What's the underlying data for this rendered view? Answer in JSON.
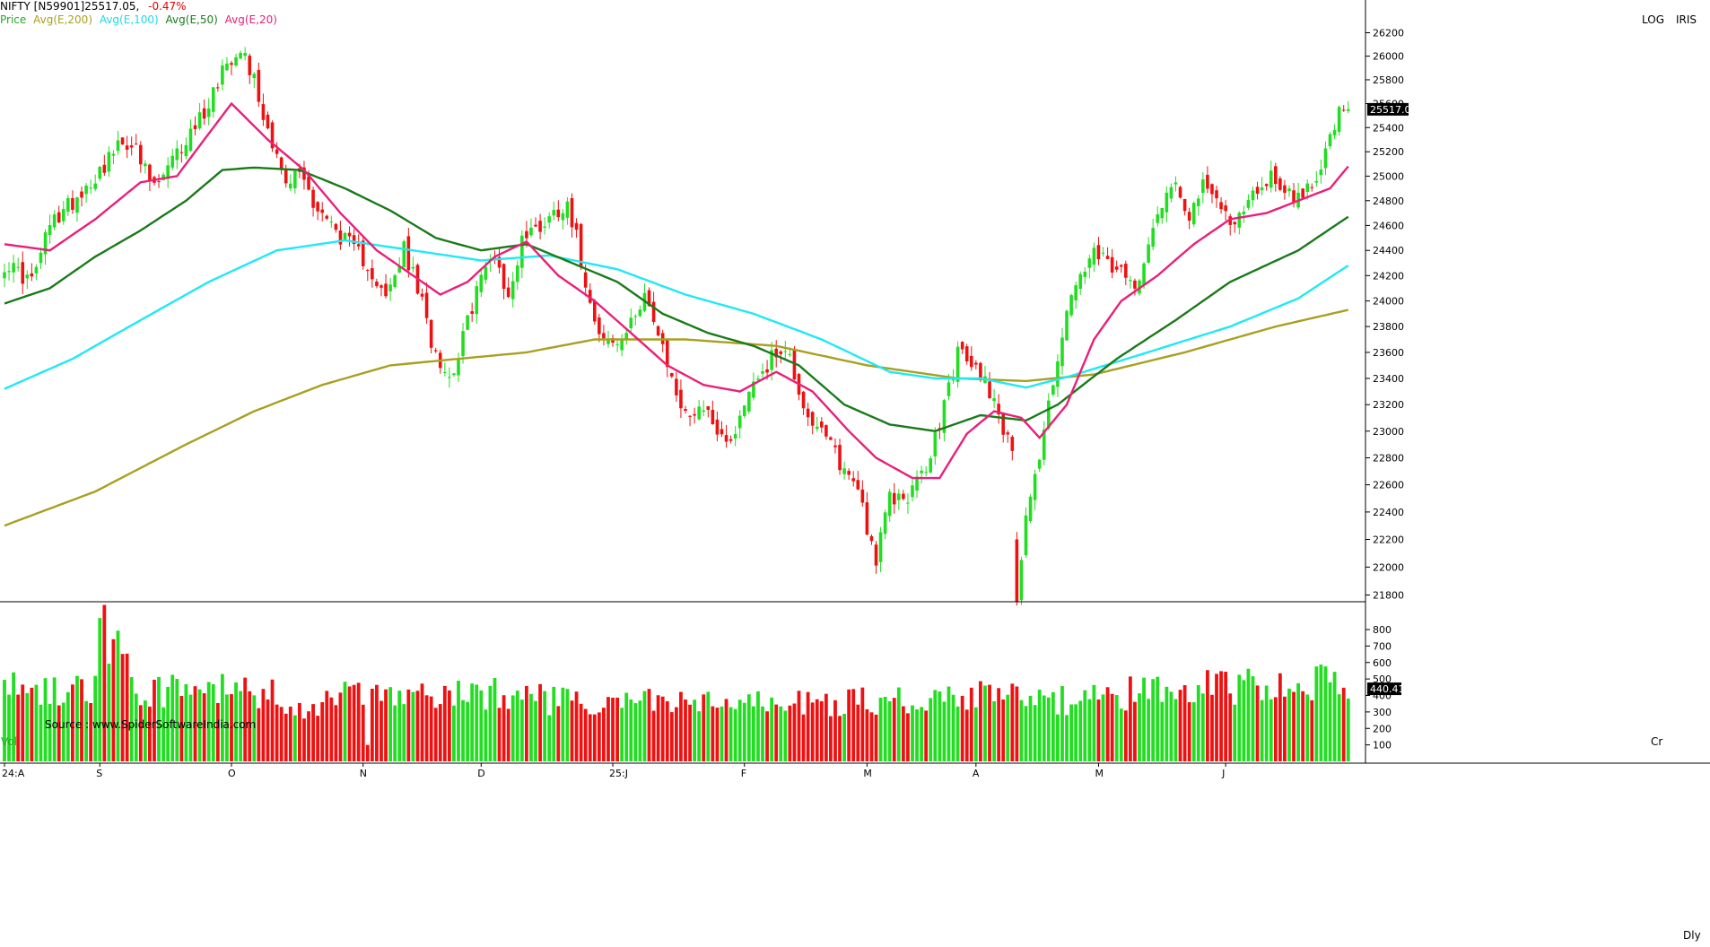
{
  "header": {
    "symbol": "NIFTY [N59901]",
    "price": "25517.05,",
    "change": "-0.47%",
    "corner_log": "LOG",
    "corner_iris": "IRIS"
  },
  "legend": [
    {
      "label": "Price",
      "color": "#22aa22"
    },
    {
      "label": "Avg(E,200)",
      "color": "#a8a020"
    },
    {
      "label": "Avg(E,100)",
      "color": "#20e0f0"
    },
    {
      "label": "Avg(E,50)",
      "color": "#1a7a1a"
    },
    {
      "label": "Avg(E,20)",
      "color": "#e8207a"
    }
  ],
  "source": "Source : www.SpiderSoftwareIndia.com",
  "volume_panel": {
    "label": "Vol",
    "corner": "Cr",
    "last_value": "440.41",
    "y_ticks": [
      "100",
      "200",
      "300",
      "400",
      "500",
      "600",
      "700",
      "800"
    ]
  },
  "price_panel": {
    "last_value": "25517.0",
    "y_ticks": [
      "21800",
      "22000",
      "22200",
      "22400",
      "22600",
      "22800",
      "23000",
      "23200",
      "23400",
      "23600",
      "23800",
      "24000",
      "24200",
      "24400",
      "24600",
      "24800",
      "25000",
      "25200",
      "25400",
      "25600",
      "25800",
      "26000",
      "26200"
    ]
  },
  "x_axis": {
    "labels": [
      "24:A",
      "S",
      "O",
      "N",
      "D",
      "25:J",
      "F",
      "M",
      "A",
      "M",
      "J"
    ],
    "period": "Dly"
  },
  "chart_data": {
    "type": "candlestick",
    "title": "NIFTY [N59901]",
    "scale": "log",
    "ylim": [
      21750,
      26300
    ],
    "series": [
      {
        "name": "Avg(E,200)",
        "color": "#a8a020",
        "kind": "line"
      },
      {
        "name": "Avg(E,100)",
        "color": "#20e0f0",
        "kind": "line"
      },
      {
        "name": "Avg(E,50)",
        "color": "#1a7a1a",
        "kind": "line"
      },
      {
        "name": "Avg(E,20)",
        "color": "#e8207a",
        "kind": "line"
      }
    ],
    "anchors": {
      "close": [
        [
          0,
          24300
        ],
        [
          6,
          24150
        ],
        [
          10,
          24600
        ],
        [
          15,
          24800
        ],
        [
          20,
          25000
        ],
        [
          24,
          25200
        ],
        [
          28,
          25300
        ],
        [
          30,
          25100
        ],
        [
          33,
          24900
        ],
        [
          36,
          25050
        ],
        [
          40,
          25300
        ],
        [
          45,
          25600
        ],
        [
          48,
          25900
        ],
        [
          52,
          26100
        ],
        [
          55,
          25800
        ],
        [
          57,
          25500
        ],
        [
          60,
          25200
        ],
        [
          62,
          24900
        ],
        [
          65,
          25050
        ],
        [
          68,
          24800
        ],
        [
          72,
          24600
        ],
        [
          77,
          24400
        ],
        [
          80,
          24300
        ],
        [
          84,
          24000
        ],
        [
          88,
          24400
        ],
        [
          91,
          24100
        ],
        [
          94,
          23700
        ],
        [
          98,
          23400
        ],
        [
          101,
          23700
        ],
        [
          104,
          24100
        ],
        [
          108,
          24400
        ],
        [
          111,
          24000
        ],
        [
          114,
          24500
        ],
        [
          118,
          24600
        ],
        [
          121,
          24700
        ],
        [
          124,
          24800
        ],
        [
          126,
          24500
        ],
        [
          129,
          24000
        ],
        [
          132,
          23700
        ],
        [
          135,
          23650
        ],
        [
          138,
          23800
        ],
        [
          141,
          24100
        ],
        [
          144,
          23700
        ],
        [
          147,
          23400
        ],
        [
          150,
          23100
        ],
        [
          153,
          23200
        ],
        [
          156,
          23100
        ],
        [
          159,
          22900
        ],
        [
          162,
          23100
        ],
        [
          165,
          23400
        ],
        [
          168,
          23500
        ],
        [
          171,
          23650
        ],
        [
          173,
          23550
        ],
        [
          176,
          23200
        ],
        [
          179,
          23000
        ],
        [
          182,
          22900
        ],
        [
          185,
          22700
        ],
        [
          188,
          22600
        ],
        [
          190,
          22300
        ],
        [
          192,
          22050
        ],
        [
          195,
          22500
        ],
        [
          198,
          22500
        ],
        [
          201,
          22600
        ],
        [
          204,
          22800
        ],
        [
          207,
          23200
        ],
        [
          210,
          23600
        ],
        [
          213,
          23500
        ],
        [
          216,
          23400
        ],
        [
          219,
          23150
        ],
        [
          222,
          22800
        ],
        [
          223,
          21800
        ],
        [
          225,
          22400
        ],
        [
          228,
          22800
        ],
        [
          231,
          23400
        ],
        [
          234,
          23900
        ],
        [
          237,
          24200
        ],
        [
          240,
          24350
        ],
        [
          243,
          24300
        ],
        [
          246,
          24200
        ],
        [
          249,
          24100
        ],
        [
          252,
          24500
        ],
        [
          255,
          24800
        ],
        [
          258,
          24950
        ],
        [
          261,
          24700
        ],
        [
          264,
          24900
        ],
        [
          267,
          24800
        ],
        [
          270,
          24650
        ],
        [
          273,
          24700
        ],
        [
          276,
          24900
        ],
        [
          279,
          25000
        ],
        [
          282,
          24900
        ],
        [
          285,
          24800
        ],
        [
          288,
          24950
        ],
        [
          291,
          25200
        ],
        [
          294,
          25500
        ],
        [
          296,
          25517
        ]
      ],
      "ema200": [
        [
          0,
          22300
        ],
        [
          20,
          22550
        ],
        [
          40,
          22900
        ],
        [
          55,
          23150
        ],
        [
          70,
          23350
        ],
        [
          85,
          23500
        ],
        [
          100,
          23550
        ],
        [
          115,
          23600
        ],
        [
          130,
          23700
        ],
        [
          150,
          23700
        ],
        [
          170,
          23650
        ],
        [
          190,
          23500
        ],
        [
          210,
          23400
        ],
        [
          225,
          23380
        ],
        [
          240,
          23430
        ],
        [
          260,
          23600
        ],
        [
          280,
          23800
        ],
        [
          296,
          23930
        ]
      ],
      "ema100": [
        [
          0,
          23320
        ],
        [
          15,
          23550
        ],
        [
          30,
          23850
        ],
        [
          45,
          24150
        ],
        [
          60,
          24400
        ],
        [
          75,
          24480
        ],
        [
          90,
          24400
        ],
        [
          105,
          24320
        ],
        [
          120,
          24360
        ],
        [
          135,
          24250
        ],
        [
          150,
          24050
        ],
        [
          165,
          23900
        ],
        [
          180,
          23700
        ],
        [
          195,
          23450
        ],
        [
          205,
          23400
        ],
        [
          215,
          23400
        ],
        [
          225,
          23330
        ],
        [
          235,
          23420
        ],
        [
          250,
          23580
        ],
        [
          270,
          23800
        ],
        [
          285,
          24020
        ],
        [
          296,
          24280
        ]
      ],
      "ema50": [
        [
          0,
          23980
        ],
        [
          10,
          24100
        ],
        [
          20,
          24350
        ],
        [
          30,
          24560
        ],
        [
          40,
          24800
        ],
        [
          48,
          25050
        ],
        [
          55,
          25070
        ],
        [
          65,
          25050
        ],
        [
          75,
          24900
        ],
        [
          85,
          24720
        ],
        [
          95,
          24500
        ],
        [
          105,
          24400
        ],
        [
          115,
          24450
        ],
        [
          125,
          24300
        ],
        [
          135,
          24150
        ],
        [
          145,
          23900
        ],
        [
          155,
          23750
        ],
        [
          165,
          23650
        ],
        [
          175,
          23500
        ],
        [
          185,
          23200
        ],
        [
          195,
          23050
        ],
        [
          205,
          23000
        ],
        [
          215,
          23120
        ],
        [
          225,
          23080
        ],
        [
          232,
          23200
        ],
        [
          245,
          23550
        ],
        [
          258,
          23850
        ],
        [
          270,
          24150
        ],
        [
          285,
          24400
        ],
        [
          296,
          24670
        ]
      ],
      "ema20": [
        [
          0,
          24450
        ],
        [
          10,
          24400
        ],
        [
          20,
          24650
        ],
        [
          30,
          24950
        ],
        [
          38,
          25000
        ],
        [
          46,
          25400
        ],
        [
          50,
          25600
        ],
        [
          58,
          25300
        ],
        [
          66,
          25050
        ],
        [
          74,
          24700
        ],
        [
          82,
          24400
        ],
        [
          90,
          24200
        ],
        [
          96,
          24050
        ],
        [
          102,
          24150
        ],
        [
          108,
          24350
        ],
        [
          115,
          24470
        ],
        [
          122,
          24200
        ],
        [
          130,
          24000
        ],
        [
          138,
          23750
        ],
        [
          146,
          23500
        ],
        [
          154,
          23350
        ],
        [
          162,
          23300
        ],
        [
          170,
          23450
        ],
        [
          178,
          23300
        ],
        [
          186,
          23000
        ],
        [
          192,
          22800
        ],
        [
          200,
          22650
        ],
        [
          206,
          22650
        ],
        [
          212,
          22980
        ],
        [
          218,
          23150
        ],
        [
          224,
          23100
        ],
        [
          228,
          22950
        ],
        [
          234,
          23200
        ],
        [
          240,
          23700
        ],
        [
          246,
          24000
        ],
        [
          254,
          24200
        ],
        [
          262,
          24450
        ],
        [
          270,
          24650
        ],
        [
          278,
          24700
        ],
        [
          285,
          24800
        ],
        [
          292,
          24900
        ],
        [
          296,
          25080
        ]
      ],
      "volume": [
        [
          0,
          430
        ],
        [
          10,
          450
        ],
        [
          20,
          430
        ],
        [
          21,
          870
        ],
        [
          30,
          440
        ],
        [
          40,
          420
        ],
        [
          45,
          450
        ],
        [
          50,
          420
        ],
        [
          55,
          420
        ],
        [
          60,
          400
        ],
        [
          65,
          320
        ],
        [
          75,
          400
        ],
        [
          80,
          380
        ],
        [
          90,
          380
        ],
        [
          100,
          400
        ],
        [
          110,
          430
        ],
        [
          120,
          370
        ],
        [
          130,
          330
        ],
        [
          140,
          370
        ],
        [
          150,
          350
        ],
        [
          160,
          340
        ],
        [
          170,
          360
        ],
        [
          180,
          350
        ],
        [
          190,
          380
        ],
        [
          200,
          360
        ],
        [
          210,
          400
        ],
        [
          220,
          400
        ],
        [
          230,
          360
        ],
        [
          240,
          380
        ],
        [
          250,
          420
        ],
        [
          260,
          460
        ],
        [
          270,
          450
        ],
        [
          280,
          480
        ],
        [
          290,
          480
        ],
        [
          296,
          440
        ]
      ]
    }
  }
}
